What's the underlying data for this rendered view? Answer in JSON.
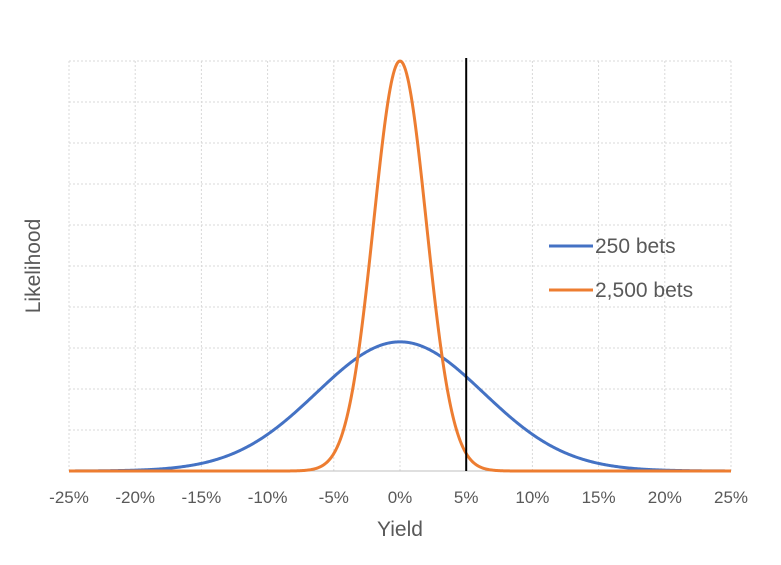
{
  "chart_data": {
    "type": "line",
    "xlabel": "Yield",
    "ylabel": "Likelihood",
    "x_ticks": [
      "-25%",
      "-20%",
      "-15%",
      "-10%",
      "-5%",
      "0%",
      "5%",
      "10%",
      "15%",
      "20%",
      "25%"
    ],
    "xlim": [
      -25,
      25
    ],
    "ylim": [
      0,
      1
    ],
    "y_tick_labels_shown": false,
    "grid": true,
    "legend_position": "right",
    "reference_line_x": 5,
    "series": [
      {
        "name": "250 bets",
        "color": "#4472C4",
        "mean": 0,
        "sd": 6.3,
        "peak": 0.315
      },
      {
        "name": "2,500 bets",
        "color": "#ED7D31",
        "mean": 0,
        "sd": 1.99,
        "peak": 1.0
      }
    ]
  }
}
